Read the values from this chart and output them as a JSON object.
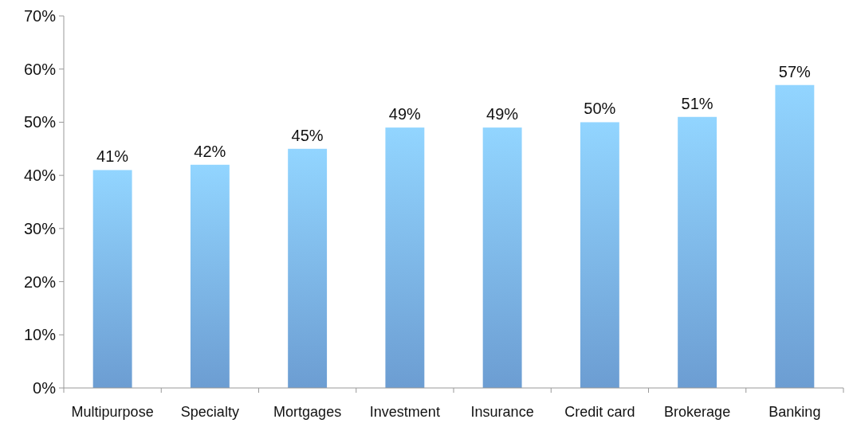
{
  "chart_data": {
    "type": "bar",
    "categories": [
      "Multipurpose",
      "Specialty",
      "Mortgages",
      "Investment",
      "Insurance",
      "Credit card",
      "Brokerage",
      "Banking"
    ],
    "values": [
      41,
      42,
      45,
      49,
      49,
      50,
      51,
      57
    ],
    "value_labels": [
      "41%",
      "42%",
      "45%",
      "49%",
      "49%",
      "50%",
      "51%",
      "57%"
    ],
    "color": "#7ab2ee",
    "ylim": [
      0,
      70
    ],
    "yticks": [
      {
        "value": 0,
        "label": "0%"
      },
      {
        "value": 10,
        "label": "10%"
      },
      {
        "value": 20,
        "label": "20%"
      },
      {
        "value": 30,
        "label": "30%"
      },
      {
        "value": 40,
        "label": "40%"
      },
      {
        "value": 50,
        "label": "50%"
      },
      {
        "value": 60,
        "label": "60%"
      },
      {
        "value": 70,
        "label": "70%"
      }
    ],
    "grid": false
  }
}
